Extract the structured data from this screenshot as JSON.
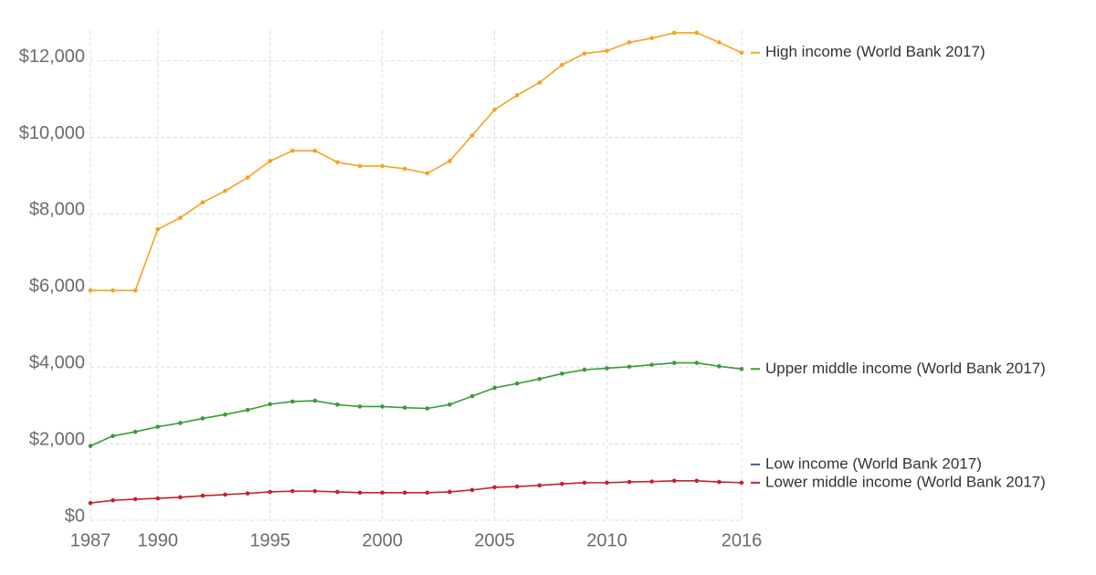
{
  "chart_data": {
    "type": "line",
    "x": [
      1987,
      1988,
      1989,
      1990,
      1991,
      1992,
      1993,
      1994,
      1995,
      1996,
      1997,
      1998,
      1999,
      2000,
      2001,
      2002,
      2003,
      2004,
      2005,
      2006,
      2007,
      2008,
      2009,
      2010,
      2011,
      2012,
      2013,
      2014,
      2015,
      2016
    ],
    "series": [
      {
        "name": "High income (World Bank 2017)",
        "color": "#f5a21f",
        "values": [
          6000,
          6000,
          6000,
          7600,
          7900,
          8300,
          8600,
          8950,
          9380,
          9650,
          9650,
          9350,
          9250,
          9250,
          9180,
          9060,
          9380,
          10050,
          10720,
          11100,
          11430,
          11890,
          12190,
          12260,
          12480,
          12590,
          12730,
          12730,
          12480,
          12210
        ]
      },
      {
        "name": "Upper middle income (World Bank 2017)",
        "color": "#3a9a3a",
        "values": [
          1940,
          2200,
          2310,
          2440,
          2540,
          2660,
          2760,
          2880,
          3030,
          3100,
          3120,
          3020,
          2970,
          2970,
          2940,
          2920,
          3020,
          3240,
          3460,
          3570,
          3690,
          3830,
          3930,
          3970,
          4010,
          4060,
          4110,
          4110,
          4020,
          3950
        ]
      },
      {
        "name": "Low income (World Bank 2017)",
        "color": "#3b57c4",
        "values": [
          null,
          null,
          null,
          null,
          null,
          null,
          null,
          null,
          null,
          null,
          null,
          null,
          null,
          null,
          null,
          null,
          null,
          null,
          null,
          null,
          null,
          null,
          null,
          null,
          null,
          null,
          null,
          null,
          null,
          null
        ]
      },
      {
        "name": "Lower middle income (World Bank 2017)",
        "color": "#c0232c",
        "values": [
          450,
          520,
          550,
          570,
          600,
          640,
          670,
          700,
          740,
          760,
          760,
          740,
          720,
          720,
          720,
          720,
          740,
          790,
          860,
          880,
          910,
          950,
          980,
          980,
          1000,
          1010,
          1030,
          1030,
          1000,
          980
        ]
      }
    ],
    "xlim": [
      1987,
      2016
    ],
    "xticks": [
      1987,
      1990,
      1995,
      2000,
      2005,
      2010,
      2016
    ],
    "ylim": [
      0,
      12800
    ],
    "yticks": [
      {
        "value": 0,
        "label": "$0"
      },
      {
        "value": 2000,
        "label": "$2,000"
      },
      {
        "value": 4000,
        "label": "$4,000"
      },
      {
        "value": 6000,
        "label": "$6,000"
      },
      {
        "value": 8000,
        "label": "$8,000"
      },
      {
        "value": 10000,
        "label": "$10,000"
      },
      {
        "value": 12000,
        "label": "$12,000"
      }
    ],
    "grid": true
  }
}
